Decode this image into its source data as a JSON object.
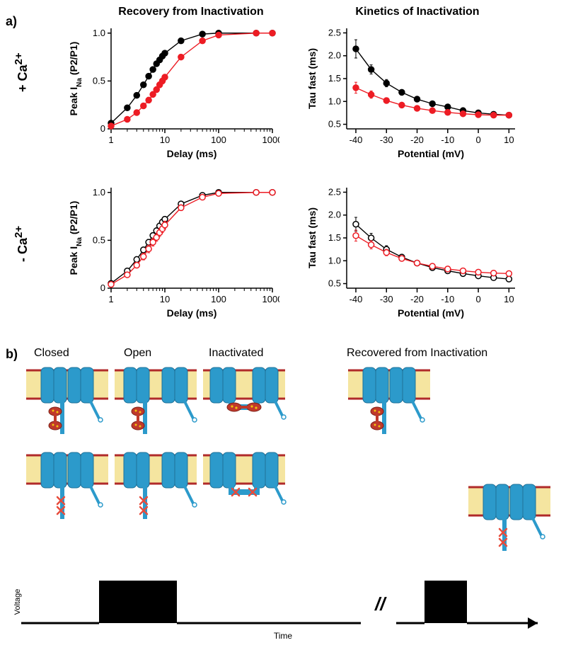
{
  "panel_a_label": "a)",
  "panel_b_label": "b)",
  "condition_plus": "+ Ca",
  "condition_plus_sup": "2+",
  "condition_minus": "- Ca",
  "condition_minus_sup": "2+",
  "col1_title": "Recovery from Inactivation",
  "col2_title": "Kinetics of Inactivation",
  "recovery_ylabel_prefix": "Peak I",
  "recovery_ylabel_sub": "Na",
  "recovery_ylabel_suffix": "  (P2/P1)",
  "recovery_xlabel": "Delay (ms)",
  "kinetics_ylabel": "Tau fast (ms)",
  "kinetics_xlabel": "Potential (mV)",
  "colors": {
    "series_black": "#000000",
    "series_red": "#ed1c24",
    "axis": "#000000",
    "bg": "#ffffff",
    "channel_blue": "#2c9acb",
    "channel_blue_dark": "#1f7299",
    "membrane_yellow": "#f5e5a0",
    "membrane_border": "#b02a2a",
    "cam_red": "#c0392b",
    "cam_dot": "#f1c40f",
    "x_mark": "#e74c3c",
    "voltage_black": "#000000"
  },
  "recovery_plot": {
    "type": "line-scatter",
    "xscale": "log",
    "xlim": [
      1,
      1000
    ],
    "xticks": [
      1,
      10,
      100,
      1000
    ],
    "xtick_labels": [
      "1",
      "10",
      "100",
      "1000"
    ],
    "ylim": [
      0,
      1.05
    ],
    "yticks": [
      0,
      0.5,
      1.0
    ],
    "ytick_labels": [
      "0",
      "0.5",
      "1.0"
    ],
    "fontsize": 12,
    "marker_size": 4,
    "line_width": 1.4
  },
  "recovery_plus_black": {
    "x": [
      1,
      2,
      3,
      4,
      5,
      6,
      7,
      8,
      9,
      10,
      20,
      50,
      100,
      500,
      1000
    ],
    "y": [
      0.06,
      0.22,
      0.35,
      0.46,
      0.55,
      0.62,
      0.68,
      0.72,
      0.76,
      0.79,
      0.92,
      0.99,
      1.0,
      1.0,
      1.0
    ],
    "yerr": [
      0.01,
      0.01,
      0.01,
      0.01,
      0.01,
      0.01,
      0.01,
      0.01,
      0.01,
      0.01,
      0.01,
      0.01,
      0.005,
      0.005,
      0.005
    ],
    "marker": "filled-circle"
  },
  "recovery_plus_red": {
    "x": [
      1,
      2,
      3,
      4,
      5,
      6,
      7,
      8,
      9,
      10,
      20,
      50,
      100,
      500,
      1000
    ],
    "y": [
      0.03,
      0.1,
      0.17,
      0.24,
      0.3,
      0.36,
      0.41,
      0.46,
      0.5,
      0.54,
      0.75,
      0.92,
      0.98,
      1.0,
      1.0
    ],
    "yerr": [
      0.01,
      0.015,
      0.02,
      0.025,
      0.03,
      0.03,
      0.03,
      0.03,
      0.03,
      0.03,
      0.02,
      0.01,
      0.01,
      0.005,
      0.005
    ],
    "marker": "filled-circle"
  },
  "recovery_minus_black": {
    "x": [
      1,
      2,
      3,
      4,
      5,
      6,
      7,
      8,
      9,
      10,
      20,
      50,
      100,
      500,
      1000
    ],
    "y": [
      0.05,
      0.18,
      0.3,
      0.4,
      0.48,
      0.55,
      0.6,
      0.65,
      0.69,
      0.72,
      0.88,
      0.97,
      1.0,
      1.0,
      1.0
    ],
    "yerr": [
      0.015,
      0.02,
      0.025,
      0.03,
      0.03,
      0.03,
      0.03,
      0.03,
      0.03,
      0.03,
      0.02,
      0.01,
      0.01,
      0.005,
      0.005
    ],
    "marker": "open-circle"
  },
  "recovery_minus_red": {
    "x": [
      1,
      2,
      3,
      4,
      5,
      6,
      7,
      8,
      9,
      10,
      20,
      50,
      100,
      500,
      1000
    ],
    "y": [
      0.04,
      0.14,
      0.24,
      0.33,
      0.41,
      0.48,
      0.53,
      0.58,
      0.62,
      0.66,
      0.84,
      0.95,
      0.99,
      1.0,
      1.0
    ],
    "yerr": [
      0.015,
      0.02,
      0.03,
      0.035,
      0.04,
      0.04,
      0.04,
      0.04,
      0.04,
      0.04,
      0.03,
      0.015,
      0.01,
      0.005,
      0.005
    ],
    "marker": "open-circle"
  },
  "kinetics_plot": {
    "type": "line-scatter",
    "xscale": "linear",
    "xlim": [
      -43,
      12
    ],
    "xticks": [
      -40,
      -30,
      -20,
      -10,
      0,
      10
    ],
    "xtick_labels": [
      "-40",
      "-30",
      "-20",
      "-10",
      "0",
      "10"
    ],
    "ylim": [
      0.4,
      2.6
    ],
    "yticks": [
      0.5,
      1.0,
      1.5,
      2.0,
      2.5
    ],
    "ytick_labels": [
      "0.5",
      "1.0",
      "1.5",
      "2.0",
      "2.5"
    ],
    "fontsize": 12,
    "marker_size": 4,
    "line_width": 1.4
  },
  "kinetics_plus_black": {
    "x": [
      -40,
      -35,
      -30,
      -25,
      -20,
      -15,
      -10,
      -5,
      0,
      5,
      10
    ],
    "y": [
      2.15,
      1.7,
      1.4,
      1.2,
      1.05,
      0.95,
      0.88,
      0.8,
      0.75,
      0.72,
      0.7
    ],
    "yerr": [
      0.2,
      0.1,
      0.08,
      0.06,
      0.05,
      0.04,
      0.04,
      0.03,
      0.03,
      0.03,
      0.03
    ],
    "marker": "filled-circle"
  },
  "kinetics_plus_red": {
    "x": [
      -40,
      -35,
      -30,
      -25,
      -20,
      -15,
      -10,
      -5,
      0,
      5,
      10
    ],
    "y": [
      1.3,
      1.15,
      1.02,
      0.92,
      0.85,
      0.8,
      0.76,
      0.73,
      0.71,
      0.7,
      0.7
    ],
    "yerr": [
      0.12,
      0.08,
      0.06,
      0.05,
      0.04,
      0.03,
      0.03,
      0.03,
      0.03,
      0.03,
      0.03
    ],
    "marker": "filled-circle"
  },
  "kinetics_minus_black": {
    "x": [
      -40,
      -35,
      -30,
      -25,
      -20,
      -15,
      -10,
      -5,
      0,
      5,
      10
    ],
    "y": [
      1.8,
      1.5,
      1.25,
      1.08,
      0.95,
      0.85,
      0.78,
      0.72,
      0.67,
      0.63,
      0.6
    ],
    "yerr": [
      0.15,
      0.1,
      0.08,
      0.06,
      0.05,
      0.04,
      0.04,
      0.03,
      0.03,
      0.03,
      0.03
    ],
    "marker": "open-circle"
  },
  "kinetics_minus_red": {
    "x": [
      -40,
      -35,
      -30,
      -25,
      -20,
      -15,
      -10,
      -5,
      0,
      5,
      10
    ],
    "y": [
      1.55,
      1.35,
      1.18,
      1.05,
      0.95,
      0.88,
      0.82,
      0.78,
      0.75,
      0.73,
      0.72
    ],
    "yerr": [
      0.12,
      0.09,
      0.07,
      0.06,
      0.05,
      0.04,
      0.04,
      0.04,
      0.04,
      0.04,
      0.04
    ],
    "marker": "open-circle"
  },
  "states": {
    "closed": "Closed",
    "open": "Open",
    "inactivated": "Inactivated",
    "recovered": "Recovered from Inactivation"
  },
  "voltage_label_y": "Voltage",
  "voltage_label_x": "Time",
  "diagram": {
    "channel_width": 110,
    "channel_height": 85,
    "row1_has_cam": true,
    "row2_has_x": true,
    "break_symbol": "//"
  }
}
